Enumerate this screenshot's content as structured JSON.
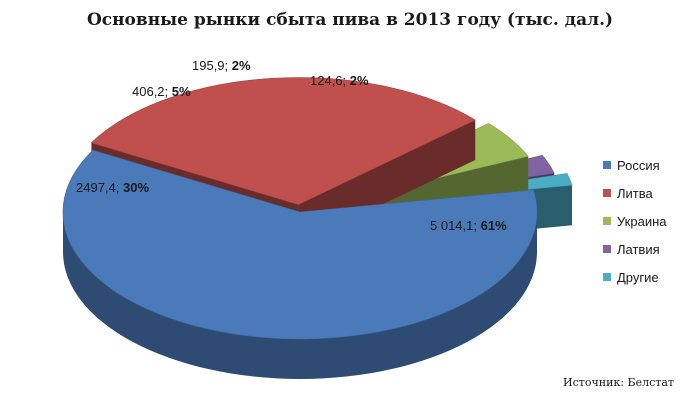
{
  "chart_data": {
    "type": "pie",
    "title": "Основные рынки сбыта пива в 2013 году (тыс. дал.)",
    "slices": [
      {
        "name": "Россия",
        "value": 5014.1,
        "value_label": "5 014,1;",
        "percent_label": "61%",
        "color": "#4a7ab9"
      },
      {
        "name": "Литва",
        "value": 2497.4,
        "value_label": "2497,4;",
        "percent_label": "30%",
        "color": "#c0504d"
      },
      {
        "name": "Украина",
        "value": 406.2,
        "value_label": "406,2;",
        "percent_label": "5%",
        "color": "#9bbb59"
      },
      {
        "name": "Латвия",
        "value": 195.9,
        "value_label": "195,9;",
        "percent_label": "2%",
        "color": "#8064a2"
      },
      {
        "name": "Другие",
        "value": 124.6,
        "value_label": "124,6;",
        "percent_label": "2%",
        "color": "#4bacc6"
      }
    ],
    "legend_position": "right",
    "exploded": true,
    "three_d": true
  },
  "source_note": "Источник: Белстат"
}
